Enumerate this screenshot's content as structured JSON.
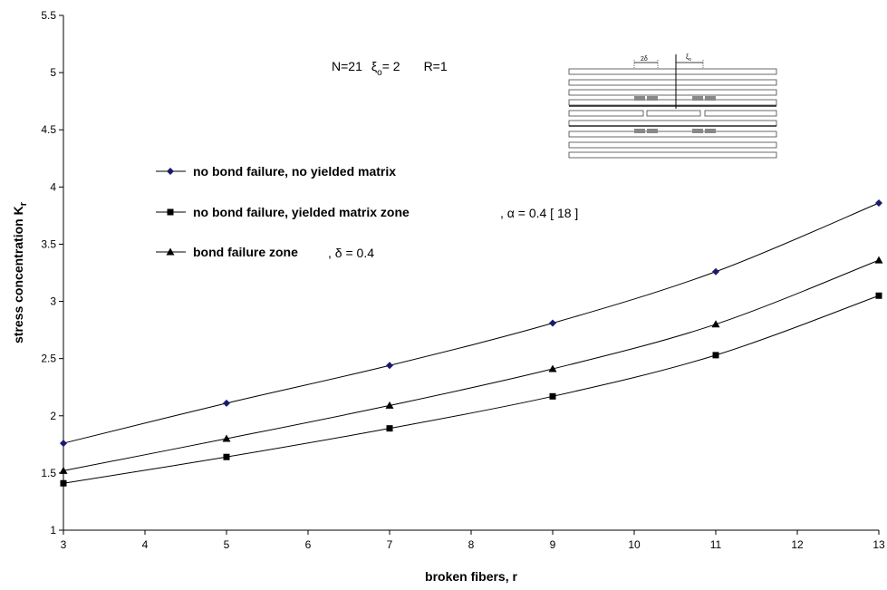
{
  "chart_data": {
    "type": "line",
    "xlabel": "broken fibers, r",
    "ylabel": "stress concentration K",
    "ylabel_sub": "r",
    "xlim": [
      3,
      13
    ],
    "ylim": [
      1,
      5.5
    ],
    "xticks": [
      3,
      4,
      5,
      6,
      7,
      8,
      9,
      10,
      11,
      12,
      13
    ],
    "yticks": [
      1,
      1.5,
      2,
      2.5,
      3,
      3.5,
      4,
      4.5,
      5,
      5.5
    ],
    "grid": false,
    "legend_position": "left, inside plot area",
    "annotation": {
      "n": "N=21",
      "xi_symbol": "ξ",
      "xi_sub": "o",
      "xi_value": "= 2",
      "r": "R=1"
    },
    "inset": {
      "label_left": "2δ",
      "label_right_sym": "ξ",
      "label_right_sub": "o"
    },
    "series": [
      {
        "name": "no bond failure, no yielded matrix",
        "suffix": "",
        "marker": "diamond",
        "color": "#1a1a6e",
        "x": [
          3,
          5,
          7,
          9,
          11,
          13
        ],
        "y": [
          1.76,
          2.11,
          2.44,
          2.81,
          3.26,
          3.86
        ]
      },
      {
        "name": "no bond failure, yielded matrix zone",
        "suffix": ", α = 0.4   [ 18 ]",
        "marker": "square",
        "color": "#000000",
        "x": [
          3,
          5,
          7,
          9,
          11,
          13
        ],
        "y": [
          1.41,
          1.64,
          1.89,
          2.17,
          2.53,
          3.05
        ]
      },
      {
        "name": "bond failure zone",
        "suffix": ", δ = 0.4",
        "marker": "triangle",
        "color": "#000000",
        "x": [
          3,
          5,
          7,
          9,
          11,
          13
        ],
        "y": [
          1.52,
          1.8,
          2.09,
          2.41,
          2.8,
          3.36
        ]
      }
    ]
  }
}
